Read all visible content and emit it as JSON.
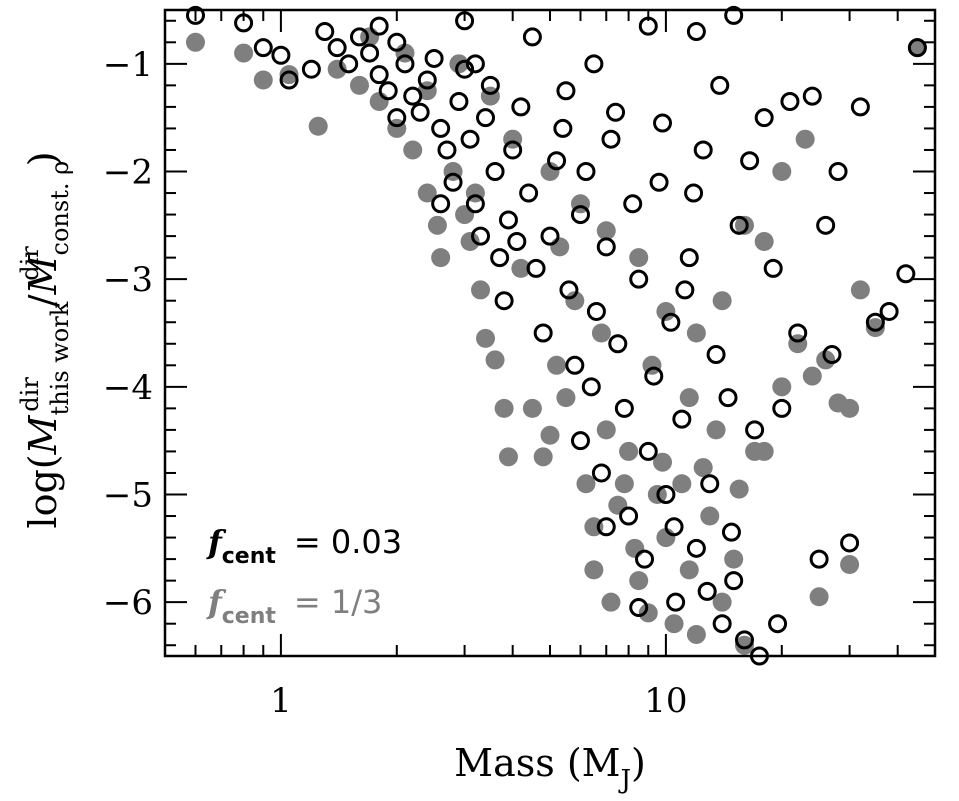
{
  "chart_data": {
    "type": "scatter",
    "title": "",
    "xlabel": "Mass (M",
    "xlabel_sub": "J",
    "xlabel_close": ")",
    "xscale": "log",
    "xlim": [
      0.5,
      50
    ],
    "ylim": [
      -6.5,
      -0.5
    ],
    "xticks": [
      {
        "value": 1,
        "label": "1"
      },
      {
        "value": 10,
        "label": "10"
      }
    ],
    "yticks": [
      {
        "value": -1,
        "label": "−1"
      },
      {
        "value": -2,
        "label": "−2"
      },
      {
        "value": -3,
        "label": "−3"
      },
      {
        "value": -4,
        "label": "−4"
      },
      {
        "value": -5,
        "label": "−5"
      },
      {
        "value": -6,
        "label": "−6"
      }
    ],
    "ylabel": {
      "prefix": "log(",
      "mdot": "M",
      "sub1": "this work",
      "sup": "dir",
      "slash": "/",
      "sub2": "const. ρ",
      "suffix": ")"
    },
    "colors": {
      "open_series": "#000000",
      "filled_series": "#7f7f7f"
    },
    "legend": [
      {
        "symbol": "f",
        "sub": "cent",
        "text": "= 0.03",
        "color": "#000000"
      },
      {
        "symbol": "f",
        "sub": "cent",
        "text": "= 1/3",
        "color": "#7f7f7f"
      }
    ],
    "series": [
      {
        "name": "f_cent = 0.03",
        "marker": "open-circle",
        "points": [
          [
            0.6,
            -0.55
          ],
          [
            0.8,
            -0.62
          ],
          [
            0.9,
            -0.85
          ],
          [
            1.0,
            -0.92
          ],
          [
            1.05,
            -1.15
          ],
          [
            1.2,
            -1.05
          ],
          [
            1.3,
            -0.7
          ],
          [
            1.4,
            -0.85
          ],
          [
            1.5,
            -1.0
          ],
          [
            1.6,
            -0.75
          ],
          [
            1.7,
            -0.9
          ],
          [
            1.8,
            -1.1
          ],
          [
            1.9,
            -1.25
          ],
          [
            2.0,
            -0.8
          ],
          [
            2.1,
            -1.0
          ],
          [
            2.2,
            -1.3
          ],
          [
            2.3,
            -1.45
          ],
          [
            2.4,
            -1.15
          ],
          [
            2.5,
            -0.95
          ],
          [
            2.6,
            -1.6
          ],
          [
            2.7,
            -1.8
          ],
          [
            2.8,
            -2.1
          ],
          [
            2.9,
            -1.35
          ],
          [
            3.0,
            -1.05
          ],
          [
            3.1,
            -1.7
          ],
          [
            3.2,
            -2.3
          ],
          [
            3.3,
            -2.6
          ],
          [
            3.4,
            -1.5
          ],
          [
            3.5,
            -1.2
          ],
          [
            3.6,
            -2.0
          ],
          [
            3.7,
            -2.8
          ],
          [
            3.8,
            -3.2
          ],
          [
            3.9,
            -2.45
          ],
          [
            4.0,
            -1.8
          ],
          [
            4.2,
            -1.4
          ],
          [
            4.4,
            -2.2
          ],
          [
            4.6,
            -2.9
          ],
          [
            4.8,
            -3.5
          ],
          [
            5.0,
            -2.6
          ],
          [
            5.2,
            -1.9
          ],
          [
            5.4,
            -1.6
          ],
          [
            5.6,
            -3.1
          ],
          [
            5.8,
            -3.8
          ],
          [
            6.0,
            -2.4
          ],
          [
            6.2,
            -2.0
          ],
          [
            6.4,
            -4.0
          ],
          [
            6.6,
            -3.3
          ],
          [
            6.8,
            -4.8
          ],
          [
            7.0,
            -2.7
          ],
          [
            7.2,
            -1.7
          ],
          [
            7.5,
            -3.6
          ],
          [
            7.8,
            -4.2
          ],
          [
            8.0,
            -5.2
          ],
          [
            8.2,
            -2.3
          ],
          [
            8.5,
            -3.0
          ],
          [
            8.8,
            -5.6
          ],
          [
            9.0,
            -4.6
          ],
          [
            9.3,
            -3.9
          ],
          [
            9.6,
            -2.1
          ],
          [
            10.0,
            -5.0
          ],
          [
            10.3,
            -3.4
          ],
          [
            10.6,
            -6.0
          ],
          [
            11.0,
            -4.3
          ],
          [
            11.5,
            -2.8
          ],
          [
            12.0,
            -5.5
          ],
          [
            12.5,
            -1.8
          ],
          [
            13.0,
            -4.9
          ],
          [
            13.5,
            -3.7
          ],
          [
            14.0,
            -6.2
          ],
          [
            14.5,
            -4.1
          ],
          [
            15.0,
            -5.8
          ],
          [
            15.5,
            -2.5
          ],
          [
            16.0,
            -6.35
          ],
          [
            17.0,
            -4.4
          ],
          [
            18.0,
            -1.5
          ],
          [
            19.0,
            -2.9
          ],
          [
            20.0,
            -4.2
          ],
          [
            22.0,
            -3.5
          ],
          [
            24.0,
            -1.3
          ],
          [
            25.0,
            -5.6
          ],
          [
            26.0,
            -2.5
          ],
          [
            27.0,
            -3.7
          ],
          [
            28.0,
            -2.0
          ],
          [
            30.0,
            -5.45
          ],
          [
            32.0,
            -1.4
          ],
          [
            35.0,
            -3.4
          ],
          [
            38.0,
            -3.3
          ],
          [
            42.0,
            -2.95
          ],
          [
            45.0,
            -0.85
          ],
          [
            3.0,
            -0.6
          ],
          [
            4.5,
            -0.75
          ],
          [
            6.5,
            -1.0
          ],
          [
            9.0,
            -0.65
          ],
          [
            12.0,
            -0.7
          ],
          [
            15.0,
            -0.55
          ],
          [
            2.0,
            -1.5
          ],
          [
            1.8,
            -0.65
          ],
          [
            2.6,
            -2.3
          ],
          [
            3.2,
            -1.0
          ],
          [
            4.1,
            -2.65
          ],
          [
            5.5,
            -1.25
          ],
          [
            7.4,
            -1.45
          ],
          [
            9.8,
            -1.55
          ],
          [
            11.8,
            -2.2
          ],
          [
            13.8,
            -1.2
          ],
          [
            16.5,
            -1.9
          ],
          [
            21.0,
            -1.35
          ],
          [
            7.0,
            -5.3
          ],
          [
            8.5,
            -6.05
          ],
          [
            10.5,
            -5.3
          ],
          [
            12.8,
            -5.9
          ],
          [
            14.8,
            -5.35
          ],
          [
            6.0,
            -4.5
          ],
          [
            11.2,
            -3.1
          ],
          [
            17.5,
            -6.5
          ],
          [
            19.5,
            -6.2
          ]
        ]
      },
      {
        "name": "f_cent = 1/3",
        "marker": "filled-circle",
        "points": [
          [
            0.6,
            -0.8
          ],
          [
            0.8,
            -0.9
          ],
          [
            0.9,
            -1.15
          ],
          [
            1.05,
            -1.1
          ],
          [
            1.25,
            -1.58
          ],
          [
            1.4,
            -1.05
          ],
          [
            1.6,
            -1.2
          ],
          [
            1.8,
            -1.35
          ],
          [
            2.0,
            -1.6
          ],
          [
            2.2,
            -1.8
          ],
          [
            2.4,
            -2.2
          ],
          [
            2.55,
            -2.5
          ],
          [
            2.6,
            -2.8
          ],
          [
            2.8,
            -2.0
          ],
          [
            3.0,
            -2.4
          ],
          [
            3.1,
            -2.65
          ],
          [
            3.3,
            -3.1
          ],
          [
            3.4,
            -3.55
          ],
          [
            3.6,
            -3.75
          ],
          [
            3.8,
            -4.2
          ],
          [
            3.9,
            -4.65
          ],
          [
            4.5,
            -4.2
          ],
          [
            4.8,
            -4.65
          ],
          [
            5.0,
            -4.45
          ],
          [
            5.2,
            -3.8
          ],
          [
            5.5,
            -4.1
          ],
          [
            5.8,
            -3.2
          ],
          [
            6.2,
            -4.9
          ],
          [
            6.5,
            -5.3
          ],
          [
            6.5,
            -5.7
          ],
          [
            7.0,
            -4.4
          ],
          [
            7.2,
            -6.0
          ],
          [
            7.5,
            -5.1
          ],
          [
            8.0,
            -4.6
          ],
          [
            8.3,
            -5.5
          ],
          [
            8.5,
            -5.8
          ],
          [
            9.0,
            -6.1
          ],
          [
            9.5,
            -5.0
          ],
          [
            10.0,
            -5.4
          ],
          [
            10.5,
            -6.2
          ],
          [
            11.0,
            -4.9
          ],
          [
            11.5,
            -5.7
          ],
          [
            12.0,
            -6.3
          ],
          [
            13.0,
            -5.2
          ],
          [
            14.0,
            -6.0
          ],
          [
            15.0,
            -5.6
          ],
          [
            16.0,
            -6.4
          ],
          [
            17.0,
            -4.6
          ],
          [
            18.0,
            -4.6
          ],
          [
            20.0,
            -4.0
          ],
          [
            22.0,
            -3.6
          ],
          [
            24.0,
            -3.9
          ],
          [
            25.0,
            -5.95
          ],
          [
            26.0,
            -3.75
          ],
          [
            28.0,
            -4.15
          ],
          [
            30.0,
            -5.65
          ],
          [
            30.0,
            -4.2
          ],
          [
            32.0,
            -3.1
          ],
          [
            35.0,
            -3.45
          ],
          [
            45.0,
            -0.85
          ],
          [
            3.5,
            -1.3
          ],
          [
            4.0,
            -1.7
          ],
          [
            5.0,
            -2.0
          ],
          [
            6.0,
            -2.3
          ],
          [
            7.0,
            -2.55
          ],
          [
            8.5,
            -2.8
          ],
          [
            10.0,
            -3.3
          ],
          [
            12.0,
            -3.5
          ],
          [
            14.0,
            -3.2
          ],
          [
            16.0,
            -2.5
          ],
          [
            18.0,
            -2.65
          ],
          [
            20.0,
            -2.0
          ],
          [
            23.0,
            -1.7
          ],
          [
            2.9,
            -1.0
          ],
          [
            2.4,
            -1.25
          ],
          [
            4.2,
            -2.9
          ],
          [
            5.3,
            -2.7
          ],
          [
            6.8,
            -3.5
          ],
          [
            9.2,
            -3.8
          ],
          [
            11.5,
            -4.1
          ],
          [
            13.5,
            -4.4
          ],
          [
            7.8,
            -4.9
          ],
          [
            9.8,
            -4.7
          ],
          [
            12.5,
            -4.75
          ],
          [
            15.5,
            -4.95
          ],
          [
            2.1,
            -0.9
          ],
          [
            1.7,
            -0.75
          ],
          [
            3.2,
            -2.2
          ]
        ]
      }
    ]
  }
}
